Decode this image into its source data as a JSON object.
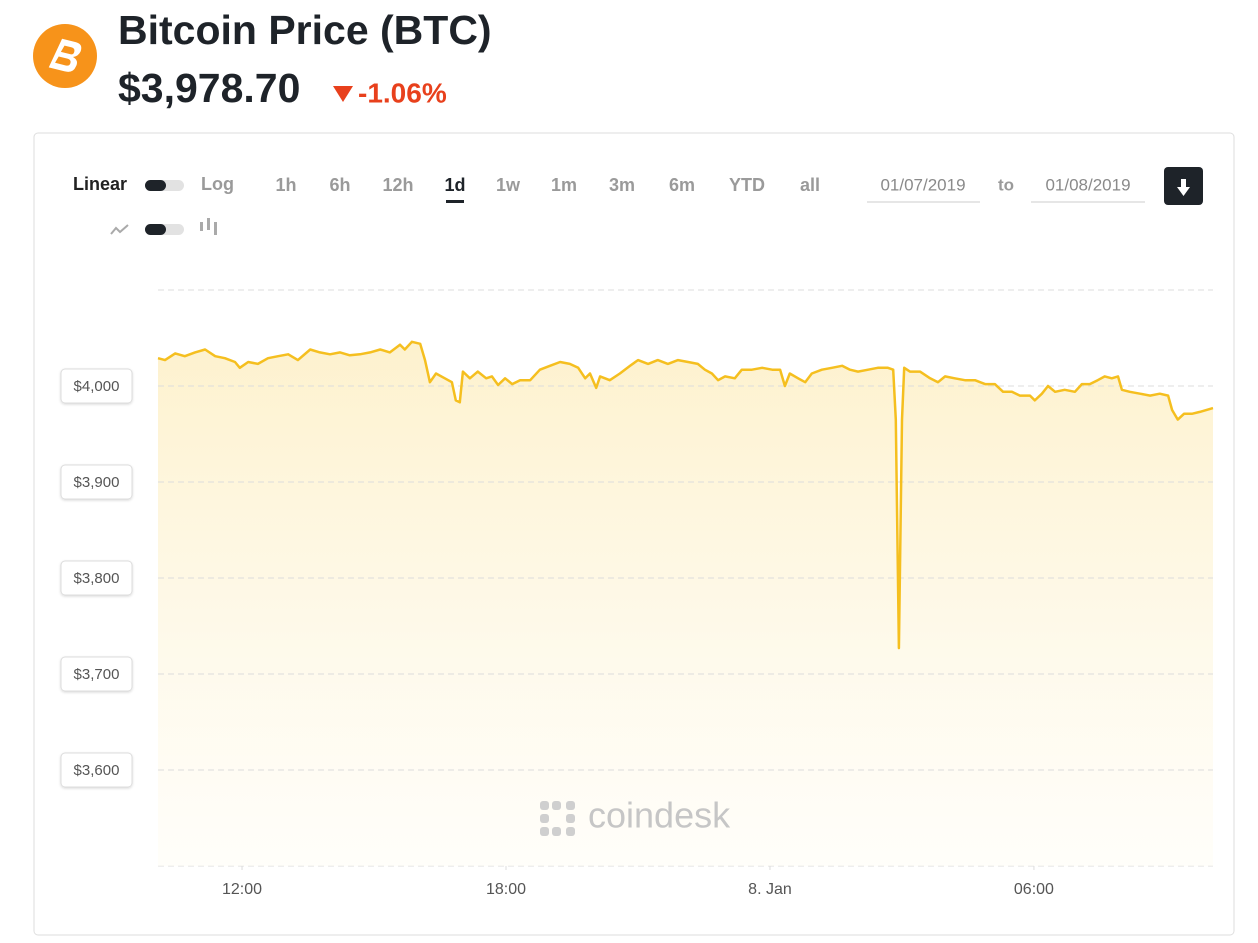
{
  "header": {
    "title": "Bitcoin Price (BTC)",
    "price": "$3,978.70",
    "change": "-1.06%"
  },
  "controls": {
    "scale_linear": "Linear",
    "scale_log": "Log",
    "ranges": [
      "1h",
      "6h",
      "12h",
      "1d",
      "1w",
      "1m",
      "3m",
      "6m",
      "YTD",
      "all"
    ],
    "active_range_index": 3,
    "date_from": "01/07/2019",
    "date_separator": "to",
    "date_to": "01/08/2019"
  },
  "watermark": "coindesk",
  "chart_data": {
    "type": "area",
    "color": "#f5bf1f",
    "grid": true,
    "xlim": [
      10.09,
      34.07
    ],
    "xticks": [
      {
        "value": 12,
        "label": "12:00"
      },
      {
        "value": 18,
        "label": "18:00"
      },
      {
        "value": 24,
        "label": "8. Jan"
      },
      {
        "value": 30,
        "label": "06:00"
      }
    ],
    "ylim": [
      3500,
      4100
    ],
    "yticks": [
      {
        "value": 3600,
        "label": "$3,600"
      },
      {
        "value": 3700,
        "label": "$3,700"
      },
      {
        "value": 3800,
        "label": "$3,800"
      },
      {
        "value": 3900,
        "label": "$3,900"
      },
      {
        "value": 4000,
        "label": "$4,000"
      }
    ],
    "x": [
      10.09,
      10.25,
      10.48,
      10.7,
      10.93,
      11.16,
      11.39,
      11.61,
      11.84,
      11.95,
      12.14,
      12.36,
      12.59,
      12.82,
      13.05,
      13.27,
      13.55,
      13.77,
      14.0,
      14.23,
      14.45,
      14.68,
      14.91,
      15.14,
      15.36,
      15.59,
      15.7,
      15.86,
      16.05,
      16.16,
      16.27,
      16.41,
      16.61,
      16.77,
      16.86,
      16.95,
      17.02,
      17.18,
      17.36,
      17.55,
      17.68,
      17.82,
      17.98,
      18.14,
      18.32,
      18.55,
      18.77,
      19.0,
      19.23,
      19.45,
      19.64,
      19.8,
      19.91,
      20.05,
      20.14,
      20.36,
      20.59,
      20.82,
      21.0,
      21.23,
      21.45,
      21.68,
      21.91,
      22.14,
      22.36,
      22.52,
      22.68,
      22.82,
      22.98,
      23.2,
      23.36,
      23.59,
      23.82,
      24.05,
      24.23,
      24.34,
      24.45,
      24.64,
      24.8,
      24.95,
      25.18,
      25.41,
      25.64,
      25.82,
      26.0,
      26.23,
      26.45,
      26.68,
      26.8,
      26.86,
      26.93,
      27.0,
      27.05,
      27.18,
      27.41,
      27.64,
      27.82,
      27.98,
      28.2,
      28.43,
      28.66,
      28.89,
      29.11,
      29.3,
      29.5,
      29.68,
      29.91,
      30.02,
      30.18,
      30.32,
      30.48,
      30.7,
      30.93,
      31.09,
      31.27,
      31.45,
      31.61,
      31.77,
      31.91,
      32.0,
      32.18,
      32.41,
      32.64,
      32.86,
      33.05,
      33.14,
      33.27,
      33.41,
      33.59,
      33.77,
      34.07
    ],
    "values": [
      4029,
      4027,
      4034,
      4031,
      4035,
      4038,
      4031,
      4029,
      4025,
      4019,
      4025,
      4023,
      4029,
      4031,
      4033,
      4027,
      4038,
      4035,
      4033,
      4035,
      4032,
      4033,
      4035,
      4038,
      4035,
      4043,
      4038,
      4046,
      4044,
      4027,
      4004,
      4013,
      4008,
      4004,
      3985,
      3983,
      4015,
      4008,
      4015,
      4008,
      4010,
      4001,
      4008,
      4002,
      4006,
      4006,
      4017,
      4021,
      4025,
      4023,
      4019,
      4008,
      4013,
      3998,
      4010,
      4006,
      4013,
      4021,
      4027,
      4023,
      4027,
      4023,
      4027,
      4025,
      4023,
      4017,
      4013,
      4006,
      4010,
      4008,
      4017,
      4017,
      4019,
      4017,
      4017,
      4000,
      4013,
      4008,
      4004,
      4013,
      4017,
      4019,
      4021,
      4017,
      4015,
      4017,
      4019,
      4019,
      4017,
      3965,
      3727,
      3965,
      4019,
      4015,
      4015,
      4008,
      4004,
      4010,
      4008,
      4006,
      4006,
      4002,
      4002,
      3994,
      3994,
      3990,
      3990,
      3985,
      3992,
      4000,
      3994,
      3996,
      3994,
      4002,
      4002,
      4006,
      4010,
      4008,
      4010,
      3996,
      3994,
      3992,
      3990,
      3992,
      3990,
      3975,
      3965,
      3971,
      3971,
      3973,
      3977
    ]
  }
}
